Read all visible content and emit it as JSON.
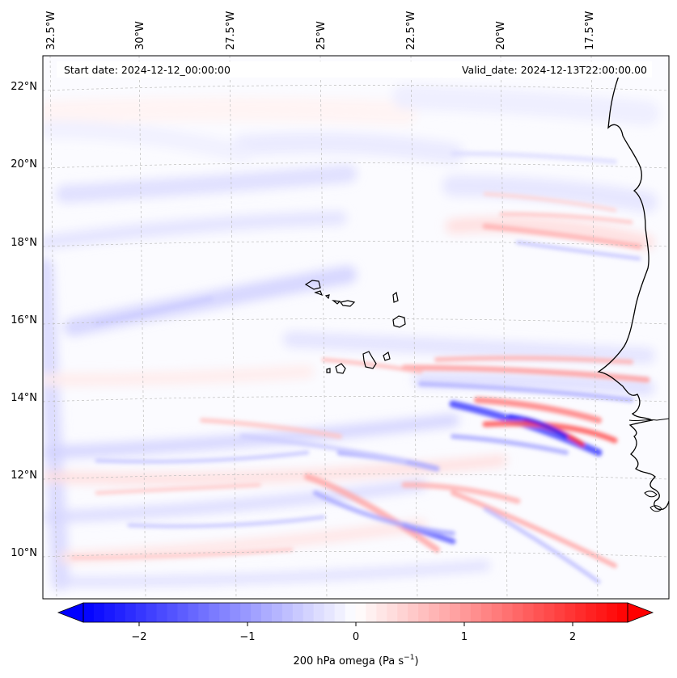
{
  "header": {
    "start_date": "Start date: 2024-12-12_00:00:00",
    "valid_date": "Valid_date: 2024-12-13T22:00:00.00"
  },
  "lon_labels": [
    "32.5°W",
    "30°W",
    "27.5°W",
    "25°W",
    "22.5°W",
    "20°W",
    "17.5°W"
  ],
  "lat_labels": [
    "22°N",
    "20°N",
    "18°N",
    "16°N",
    "14°N",
    "12°N",
    "10°N"
  ],
  "colorbar": {
    "label": "200 hPa omega (Pa s",
    "label_sup": "−1",
    "label_close": ")",
    "ticks": [
      "−2",
      "−1",
      "0",
      "1",
      "2"
    ],
    "range": [
      -2.6,
      2.6
    ],
    "cmap": "bwr",
    "low_color": "#0000ff",
    "mid_color": "#ffffff",
    "high_color": "#ff0000"
  },
  "map": {
    "field": "omega",
    "level": "200 hPa",
    "features": [
      "West African coastline",
      "Cape Verde islands"
    ],
    "gridlines": true
  }
}
